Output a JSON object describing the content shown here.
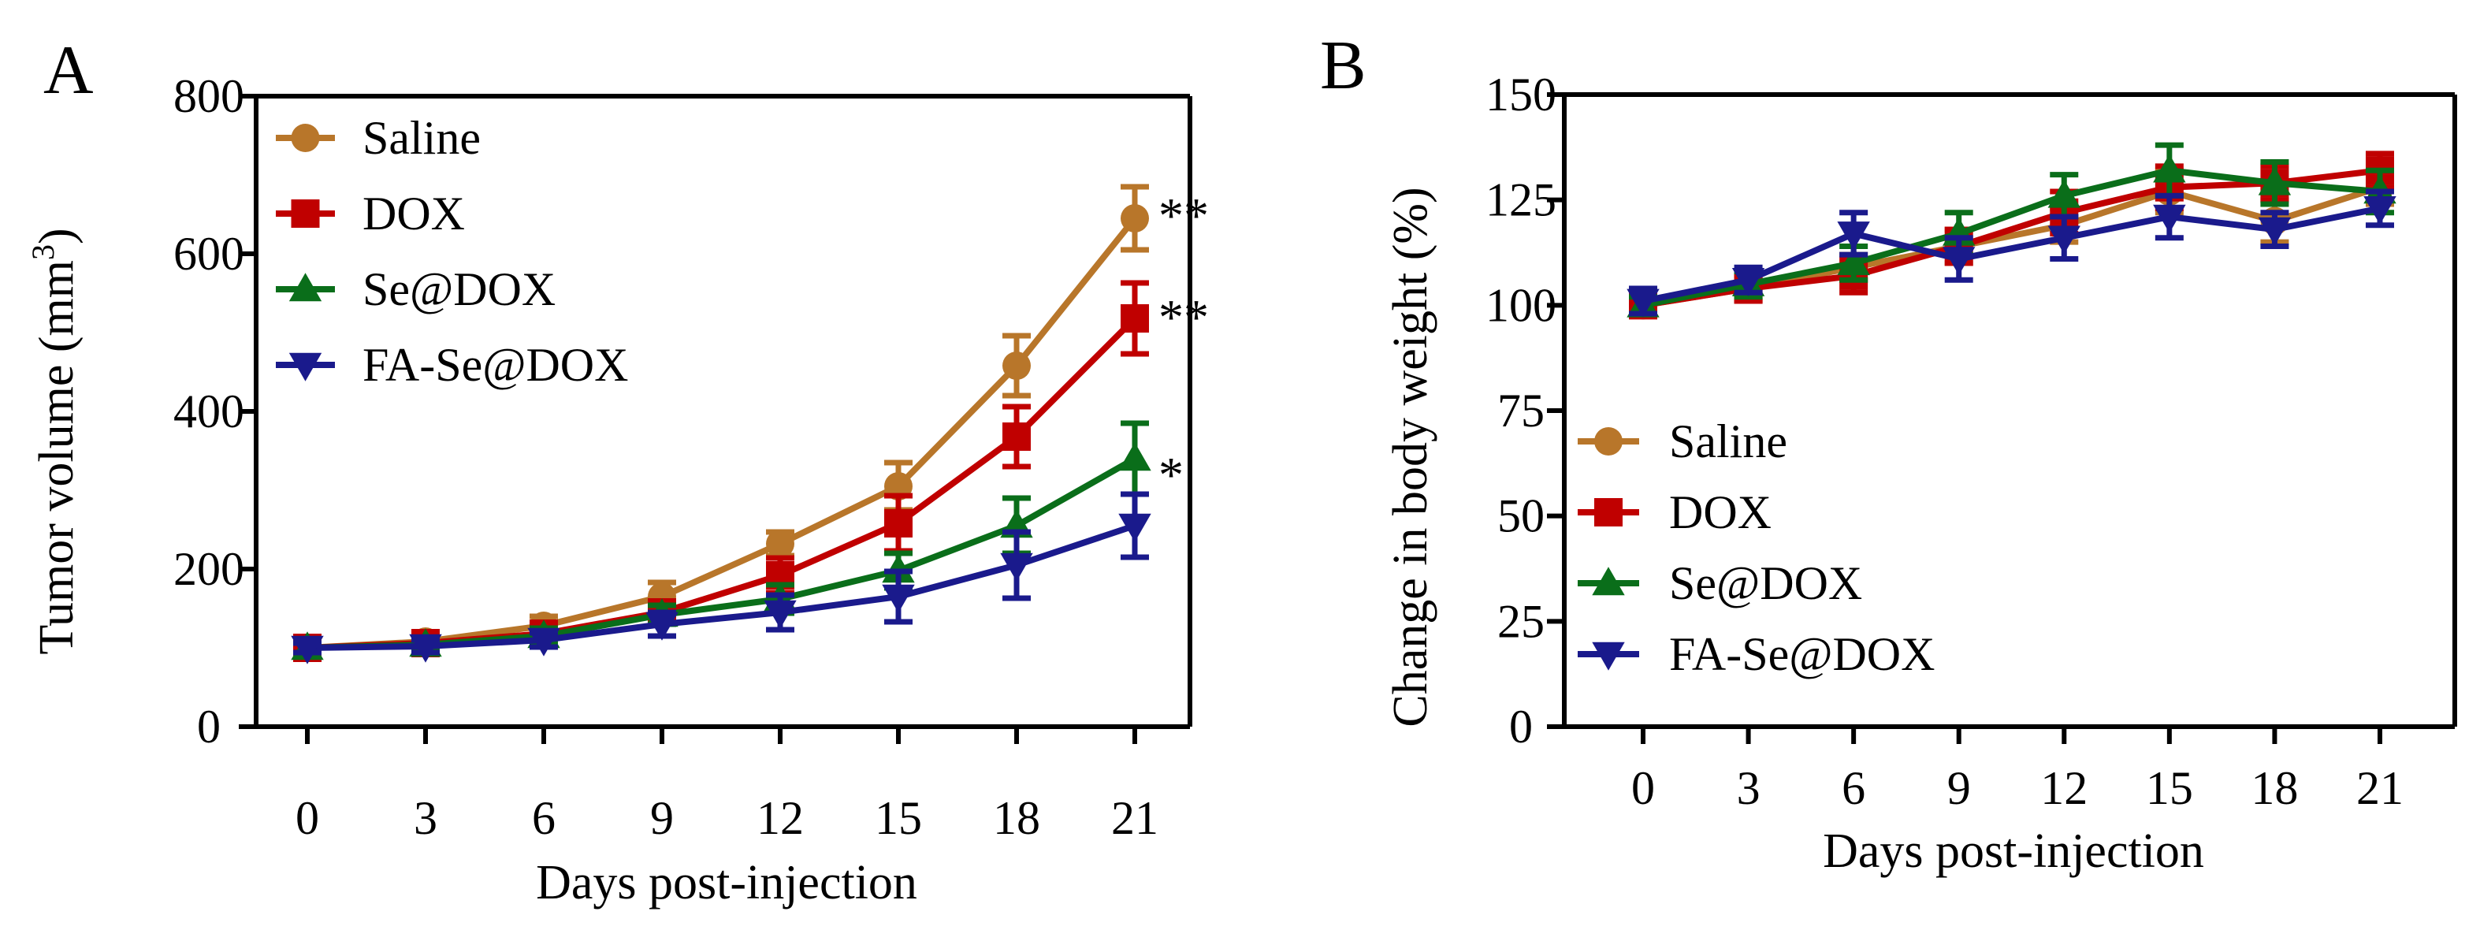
{
  "colors": {
    "Saline": "#b8762a",
    "DOX": "#c00000",
    "Se@DOX": "#0a6e1a",
    "FA-Se@DOX": "#1a1a8c",
    "axis": "#000000"
  },
  "chart_data": [
    {
      "type": "line",
      "panel_label": "A",
      "title": "",
      "xlabel": "Days post-injection",
      "ylabel": "Tumor volume (mm³)",
      "ylabel_main": "Tumor volume (mm",
      "ylabel_sup": "3",
      "ylabel_close": ")",
      "x": [
        0,
        3,
        6,
        9,
        12,
        15,
        18,
        21
      ],
      "x_tick_labels": [
        "0",
        "3",
        "6",
        "9",
        "12",
        "15",
        "18",
        "21"
      ],
      "ylim": [
        0,
        800
      ],
      "y_ticks": [
        0,
        200,
        400,
        600,
        800
      ],
      "y_tick_labels": [
        "0",
        "200",
        "400",
        "600",
        "800"
      ],
      "legend_position": "top-left",
      "series": [
        {
          "name": "Saline",
          "marker": "circle",
          "values": [
            100,
            108,
            128,
            165,
            232,
            305,
            458,
            645
          ],
          "errors": [
            8,
            10,
            12,
            18,
            15,
            30,
            38,
            40
          ]
        },
        {
          "name": "DOX",
          "marker": "square",
          "values": [
            100,
            106,
            118,
            145,
            192,
            258,
            368,
            518
          ],
          "errors": [
            7,
            9,
            10,
            14,
            22,
            35,
            38,
            45
          ]
        },
        {
          "name": "Se@DOX",
          "marker": "triangle-up",
          "values": [
            100,
            104,
            115,
            142,
            162,
            198,
            255,
            340
          ],
          "errors": [
            6,
            8,
            10,
            12,
            18,
            22,
            35,
            45
          ]
        },
        {
          "name": "FA-Se@DOX",
          "marker": "triangle-down",
          "values": [
            100,
            102,
            110,
            130,
            145,
            165,
            205,
            255
          ],
          "errors": [
            6,
            8,
            9,
            15,
            22,
            32,
            42,
            40
          ]
        }
      ],
      "annotations": [
        {
          "text": "**",
          "series": "Saline"
        },
        {
          "text": "**",
          "series": "DOX"
        },
        {
          "text": "*",
          "series": "Se@DOX"
        }
      ]
    },
    {
      "type": "line",
      "panel_label": "B",
      "title": "",
      "xlabel": "Days post-injection",
      "ylabel": "Change in body weight (%)",
      "x": [
        0,
        3,
        6,
        9,
        12,
        15,
        18,
        21
      ],
      "x_tick_labels": [
        "0",
        "3",
        "6",
        "9",
        "12",
        "15",
        "18",
        "21"
      ],
      "ylim": [
        0,
        150
      ],
      "y_ticks": [
        0,
        25,
        50,
        75,
        100,
        125,
        150
      ],
      "y_tick_labels": [
        "0",
        "25",
        "50",
        "75",
        "100",
        "125",
        "150"
      ],
      "legend_position": "bottom-left",
      "series": [
        {
          "name": "Saline",
          "marker": "circle",
          "values": [
            100,
            104,
            109,
            114,
            119,
            127,
            120,
            128
          ],
          "errors": [
            2,
            3,
            3,
            4,
            4,
            5,
            5,
            4
          ]
        },
        {
          "name": "DOX",
          "marker": "square",
          "values": [
            100,
            104,
            107,
            114,
            122,
            128,
            129,
            132
          ],
          "errors": [
            2,
            3,
            4,
            4,
            5,
            5,
            4,
            4
          ]
        },
        {
          "name": "Se@DOX",
          "marker": "triangle-up",
          "values": [
            100,
            105,
            110,
            117,
            126,
            132,
            129,
            127
          ],
          "errors": [
            2,
            3,
            4,
            5,
            5,
            6,
            5,
            5
          ]
        },
        {
          "name": "FA-Se@DOX",
          "marker": "triangle-down",
          "values": [
            101,
            106,
            117,
            111,
            116,
            121,
            118,
            123
          ],
          "errors": [
            3,
            3,
            5,
            5,
            5,
            5,
            4,
            4
          ]
        }
      ],
      "annotations": []
    }
  ]
}
